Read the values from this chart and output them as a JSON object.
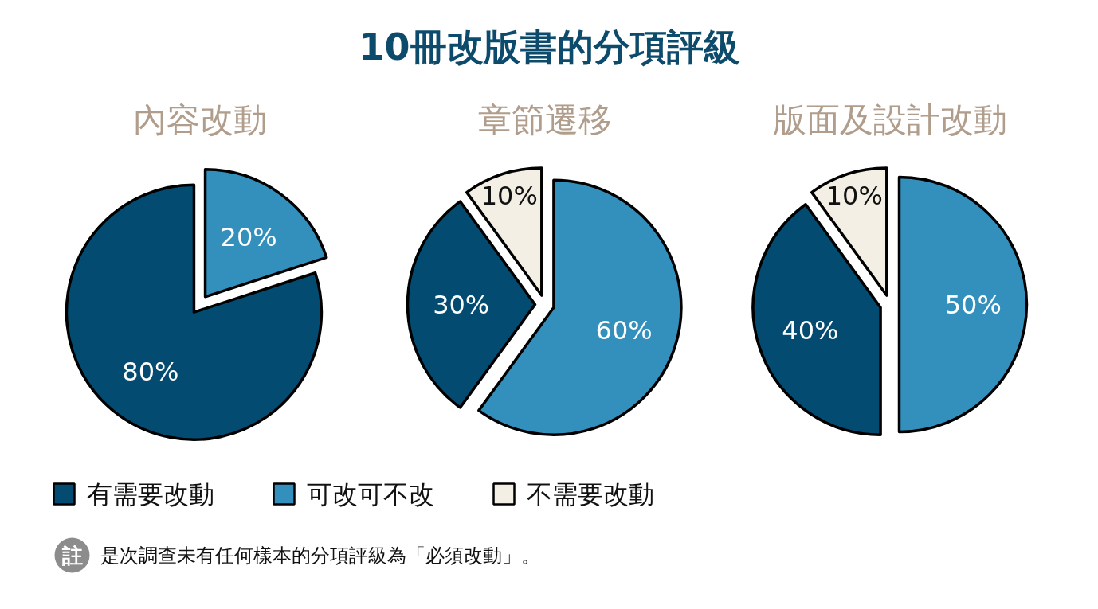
{
  "chart_data": {
    "type": "pie",
    "title": "10冊改版書的分項評級",
    "categories": [
      "有需要改動",
      "可改可不改",
      "不需要改動"
    ],
    "colors": [
      "#034b70",
      "#3390bd",
      "#f3efe4"
    ],
    "series": [
      {
        "name": "內容改動",
        "values": [
          80,
          20,
          null
        ],
        "value_labels": [
          "80%",
          "20%",
          null
        ]
      },
      {
        "name": "章節遷移",
        "values": [
          30,
          60,
          10
        ],
        "value_labels": [
          "30%",
          "60%",
          "10%"
        ]
      },
      {
        "name": "版面及設計改動",
        "values": [
          40,
          50,
          10
        ],
        "value_labels": [
          "40%",
          "50%",
          "10%"
        ]
      }
    ],
    "legend": "bottom",
    "annotations": [
      "註",
      "是次調查未有任何樣本的分項評級為「必須改動」。"
    ]
  }
}
